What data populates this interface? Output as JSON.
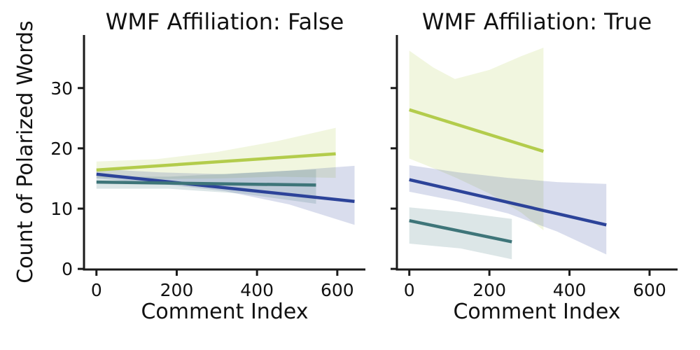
{
  "figure": {
    "background": "#ffffff",
    "text_color": "#111111",
    "axis_color": "#1a1a1a",
    "band_opacity": 0.18
  },
  "chart_data": [
    {
      "type": "line",
      "title": "WMF Affiliation: False",
      "xlabel": "Comment Index",
      "ylabel": "Count of Polarized Words",
      "xlim": [
        -31,
        670
      ],
      "ylim": [
        -0.1,
        38.8
      ],
      "xticks": [
        0,
        200,
        400,
        600
      ],
      "yticks": [
        0,
        10,
        20,
        30
      ],
      "grid": false,
      "legend": "none",
      "series": [
        {
          "name": "yellow-green",
          "color": "#b3cc4c",
          "line": {
            "x": [
              0,
              596
            ],
            "y": [
              16.4,
              19.1
            ]
          },
          "band": {
            "x": [
              0,
              150,
              300,
              450,
              596
            ],
            "upper": [
              17.8,
              18.2,
              19.4,
              21.2,
              23.4
            ],
            "lower": [
              15.1,
              14.9,
              15.0,
              15.3,
              15.1
            ]
          }
        },
        {
          "name": "dark-blue",
          "color": "#2c4399",
          "line": {
            "x": [
              0,
              643
            ],
            "y": [
              15.7,
              11.2
            ]
          },
          "band": {
            "x": [
              0,
              160,
              320,
              480,
              643
            ],
            "upper": [
              16.6,
              16.0,
              15.7,
              16.3,
              17.1
            ],
            "lower": [
              15.0,
              14.1,
              12.9,
              10.7,
              7.3
            ]
          }
        },
        {
          "name": "teal",
          "color": "#3e7579",
          "line": {
            "x": [
              0,
              547
            ],
            "y": [
              14.4,
              13.9
            ]
          },
          "band": {
            "x": [
              0,
              180,
              360,
              547
            ],
            "upper": [
              15.3,
              15.3,
              15.9,
              16.5
            ],
            "lower": [
              13.3,
              13.3,
              12.5,
              10.8
            ]
          }
        }
      ]
    },
    {
      "type": "line",
      "title": "WMF Affiliation: True",
      "xlabel": "Comment Index",
      "ylabel": "",
      "xlim": [
        -31,
        670
      ],
      "ylim": [
        -0.1,
        38.8
      ],
      "xticks": [
        0,
        200,
        400,
        600
      ],
      "yticks": [
        0,
        10,
        20,
        30
      ],
      "grid": false,
      "legend": "none",
      "series": [
        {
          "name": "yellow-green",
          "color": "#b3cc4c",
          "line": {
            "x": [
              0,
              335
            ],
            "y": [
              26.4,
              19.5
            ]
          },
          "band": {
            "x": [
              0,
              60,
              114,
              200,
              280,
              335
            ],
            "upper": [
              36.2,
              33.4,
              31.5,
              33.0,
              35.3,
              36.7
            ],
            "lower": [
              18.3,
              16.7,
              15.2,
              12.5,
              9.3,
              6.4
            ]
          }
        },
        {
          "name": "dark-blue",
          "color": "#2c4399",
          "line": {
            "x": [
              0,
              492
            ],
            "y": [
              14.8,
              7.3
            ]
          },
          "band": {
            "x": [
              0,
              123,
              246,
              369,
              492
            ],
            "upper": [
              17.2,
              16.0,
              15.1,
              14.4,
              14.1
            ],
            "lower": [
              12.8,
              11.2,
              9.2,
              6.2,
              2.4
            ]
          }
        },
        {
          "name": "teal",
          "color": "#3e7579",
          "line": {
            "x": [
              0,
              256
            ],
            "y": [
              8.0,
              4.5
            ]
          },
          "band": {
            "x": [
              0,
              128,
              256
            ],
            "upper": [
              10.2,
              9.4,
              8.3
            ],
            "lower": [
              4.2,
              3.4,
              1.6
            ]
          }
        }
      ]
    }
  ]
}
